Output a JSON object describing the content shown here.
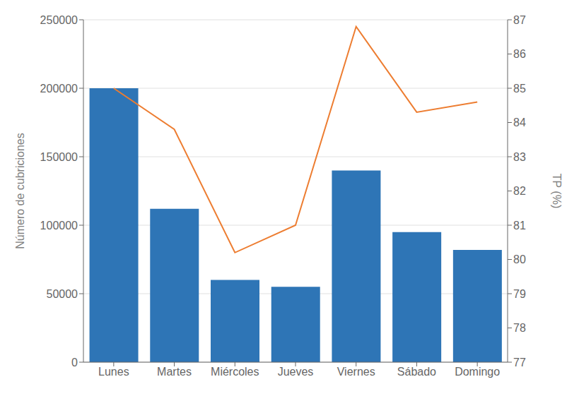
{
  "chart_data": {
    "type": "bar",
    "categories": [
      "Lunes",
      "Martes",
      "Miércoles",
      "Jueves",
      "Viernes",
      "Sábado",
      "Domingo"
    ],
    "series": [
      {
        "type": "bar",
        "color": "#2E75B6",
        "values": [
          200000,
          112000,
          60000,
          55000,
          140000,
          95000,
          82000
        ]
      },
      {
        "type": "line",
        "color": "#ED7D31",
        "axis": "y2",
        "values": [
          85.0,
          83.8,
          80.2,
          81.0,
          86.8,
          84.3,
          84.6
        ]
      }
    ],
    "ylabel": "Número de cubriciones",
    "y2label": "TP (%)",
    "ylim": [
      0,
      250000
    ],
    "yticks": [
      0,
      50000,
      100000,
      150000,
      200000,
      250000
    ],
    "y2lim": [
      77,
      87
    ],
    "y2ticks": [
      77,
      78,
      79,
      80,
      81,
      82,
      83,
      84,
      85,
      86,
      87
    ],
    "grid": true
  }
}
